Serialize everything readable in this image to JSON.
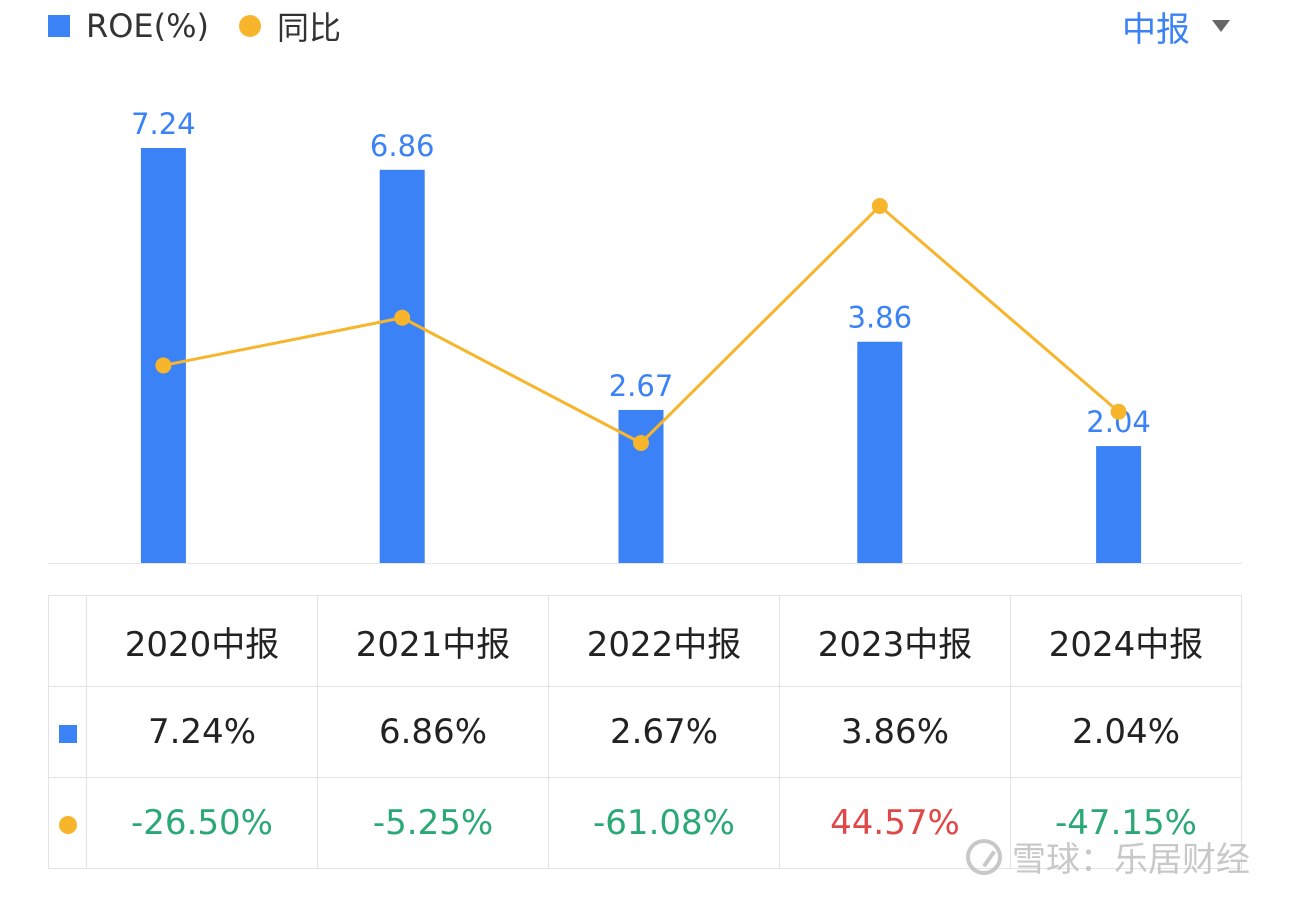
{
  "legend": {
    "roe_label": "ROE(%)",
    "yoy_label": "同比"
  },
  "period_select": {
    "label": "中报"
  },
  "colors": {
    "bar": "#3b82f6",
    "line": "#f7b52c",
    "positive": "#e04848",
    "negative": "#2aa876"
  },
  "chart_data": {
    "type": "bar",
    "categories": [
      "2020中报",
      "2021中报",
      "2022中报",
      "2023中报",
      "2024中报"
    ],
    "series": [
      {
        "name": "ROE(%)",
        "type": "bar",
        "values": [
          7.24,
          6.86,
          2.67,
          3.86,
          2.04
        ],
        "data_labels": [
          "7.24",
          "6.86",
          "2.67",
          "3.86",
          "2.04"
        ]
      },
      {
        "name": "同比",
        "type": "line",
        "values": [
          -26.5,
          -5.25,
          -61.08,
          44.57,
          -47.15
        ]
      }
    ],
    "ylim_bar": [
      0,
      7.24
    ],
    "ylim_line": [
      -70,
      50
    ],
    "grid": false
  },
  "table": {
    "headers": [
      "2020中报",
      "2021中报",
      "2022中报",
      "2023中报",
      "2024中报"
    ],
    "roe_row": [
      "7.24%",
      "6.86%",
      "2.67%",
      "3.86%",
      "2.04%"
    ],
    "yoy_row": [
      "-26.50%",
      "-5.25%",
      "-61.08%",
      "44.57%",
      "-47.15%"
    ]
  },
  "watermark": {
    "text": "雪球：乐居财经"
  }
}
